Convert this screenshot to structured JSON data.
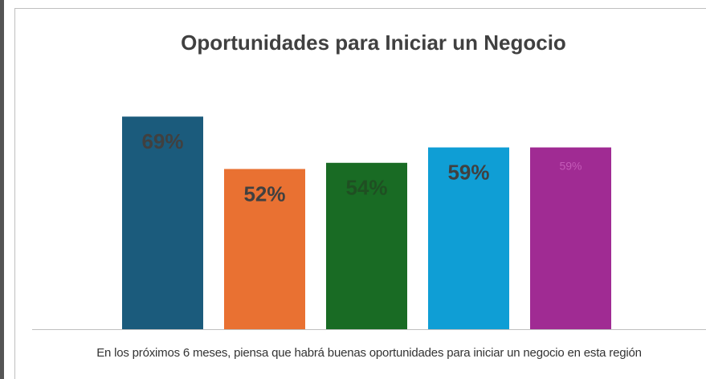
{
  "chart_data": {
    "type": "bar",
    "title": "Oportunidades para Iniciar un Negocio",
    "categories": [
      "En los próximos 6 meses, piensa que habrá buenas oportunidades para iniciar un negocio en esta región"
    ],
    "series": [
      {
        "color": "#1b5b7c",
        "label_color": "#404040",
        "values": [
          69
        ],
        "value_labels": [
          "69%"
        ]
      },
      {
        "color": "#e97132",
        "label_color": "#404040",
        "values": [
          52
        ],
        "value_labels": [
          "52%"
        ]
      },
      {
        "color": "#196b24",
        "label_color": "#1f4f22",
        "values": [
          54
        ],
        "value_labels": [
          "54%"
        ]
      },
      {
        "color": "#0f9ed5",
        "label_color": "#404040",
        "values": [
          59
        ],
        "value_labels": [
          "59%"
        ]
      },
      {
        "color": "#a02b93",
        "label_color": "#c45bb8",
        "values": [
          59
        ],
        "value_labels": [
          "59%"
        ]
      }
    ],
    "ylim": [
      0,
      80
    ],
    "grid": false
  }
}
